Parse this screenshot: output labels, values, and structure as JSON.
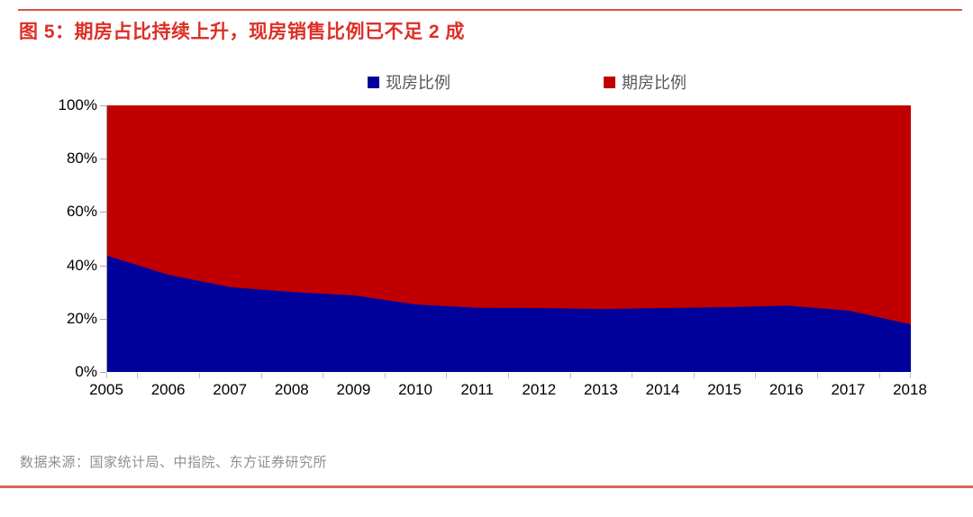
{
  "header": {
    "title": "图 5：期房占比持续上升，现房销售比例已不足 2 成"
  },
  "chart_data": {
    "type": "area",
    "stacked": true,
    "title": "期房占比持续上升，现房销售比例已不足 2 成",
    "x": [
      "2005",
      "2006",
      "2007",
      "2008",
      "2009",
      "2010",
      "2011",
      "2012",
      "2013",
      "2014",
      "2015",
      "2016",
      "2017",
      "2018"
    ],
    "series": [
      {
        "name": "现房比例",
        "color": "#00009b",
        "values": [
          43.6,
          36.4,
          31.8,
          30.0,
          28.7,
          25.3,
          24.1,
          24.0,
          23.6,
          24.0,
          24.3,
          24.9,
          23.0,
          17.8
        ]
      },
      {
        "name": "期房比例",
        "color": "#c00000",
        "values": [
          56.4,
          63.6,
          68.2,
          70.0,
          71.3,
          74.7,
          75.9,
          76.0,
          76.4,
          76.0,
          75.7,
          75.1,
          77.0,
          82.2
        ]
      }
    ],
    "ylim": [
      0,
      100
    ],
    "yticks": [
      "100%",
      "80%",
      "60%",
      "40%",
      "20%",
      "0%"
    ],
    "ylabel": "",
    "xlabel": "",
    "grid": false,
    "legend_position": "top-center"
  },
  "footer": {
    "source": "数据来源：国家统计局、中指院、东方证券研究所"
  },
  "colors": {
    "title_red": "#dd2f26",
    "rule_red": "#d9534e",
    "area_blue": "#00009b",
    "area_red": "#c00000",
    "legend_text": "#595959",
    "axis_gray": "#a6a6a6",
    "source_gray": "#8f8f8f"
  }
}
